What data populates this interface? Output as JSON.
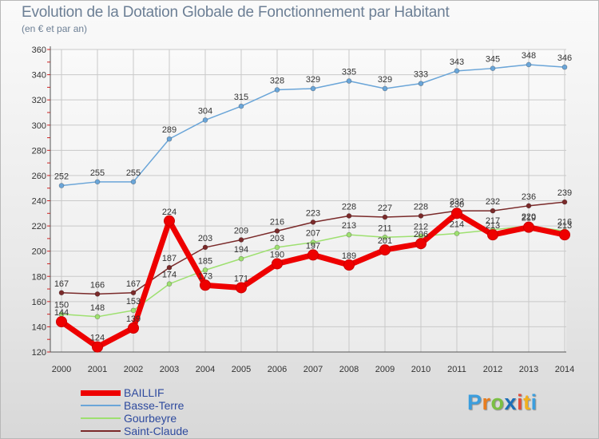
{
  "title": "Evolution de la Dotation Globale de Fonctionnement par Habitant",
  "subtitle": "(en € et par an)",
  "brand": {
    "letters": [
      "P",
      "r",
      "o",
      "x",
      "i",
      "t",
      "i"
    ],
    "colors": [
      "#3b9ede",
      "#e87d1e",
      "#7bc043",
      "#1c6fb8",
      "#e24c3b",
      "#f2b01e",
      "#3b9ede"
    ]
  },
  "chart_data": {
    "type": "line",
    "title": "Evolution de la Dotation Globale de Fonctionnement par Habitant",
    "subtitle": "(en € et par an)",
    "xlabel": "",
    "ylabel": "",
    "ylim": [
      120,
      360
    ],
    "yticks": [
      120,
      140,
      160,
      180,
      200,
      220,
      240,
      260,
      280,
      300,
      320,
      340,
      360
    ],
    "grid": true,
    "legend_position": "bottom-left",
    "x": [
      "2000",
      "2001",
      "2002",
      "2003",
      "2004",
      "2005",
      "2006",
      "2007",
      "2008",
      "2009",
      "2010",
      "2011",
      "2012",
      "2013",
      "2014"
    ],
    "series": [
      {
        "name": "BAILLIF",
        "color": "#ee0000",
        "values": [
          144,
          124,
          139,
          224,
          173,
          171,
          190,
          197,
          189,
          201,
          206,
          230,
          213,
          219,
          213
        ],
        "labels": [
          "144",
          "124",
          "139",
          "224",
          "173",
          "171",
          "190",
          "197",
          "189",
          "201",
          "206",
          "230",
          "213",
          "219",
          "213"
        ]
      },
      {
        "name": "Basse-Terre",
        "color": "#6aa5d8",
        "values": [
          252,
          255,
          255,
          289,
          304,
          315,
          328,
          329,
          335,
          329,
          333,
          343,
          345,
          348,
          346
        ],
        "labels": [
          "252",
          "255",
          "255",
          "289",
          "304",
          "315",
          "328",
          "329",
          "335",
          "329",
          "333",
          "343",
          "345",
          "348",
          "346"
        ]
      },
      {
        "name": "Gourbeyre",
        "color": "#9ee070",
        "values": [
          150,
          148,
          153,
          174,
          185,
          194,
          203,
          207,
          213,
          211,
          212,
          214,
          217,
          220,
          216
        ],
        "labels": [
          "150",
          "148",
          "153",
          "174",
          "185",
          "194",
          "203",
          "207",
          "213",
          "211",
          "212",
          "214",
          "217",
          "220",
          "216"
        ]
      },
      {
        "name": "Saint-Claude",
        "color": "#7a2a2a",
        "values": [
          167,
          166,
          167,
          187,
          203,
          209,
          216,
          223,
          228,
          227,
          228,
          232,
          232,
          236,
          239
        ],
        "labels": [
          "167",
          "166",
          "167",
          "187",
          "203",
          "209",
          "216",
          "223",
          "228",
          "227",
          "228",
          "232",
          "232",
          "236",
          "239"
        ]
      }
    ]
  }
}
